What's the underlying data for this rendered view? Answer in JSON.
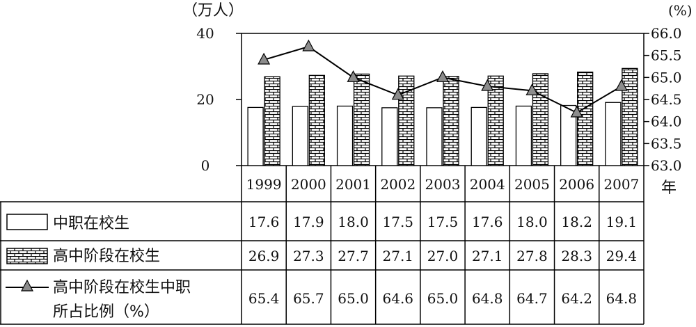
{
  "chart_data": {
    "type": "bar",
    "left_unit": "（万人）",
    "right_unit": "(%)",
    "x_unit": "年",
    "categories": [
      "1999",
      "2000",
      "2001",
      "2002",
      "2003",
      "2004",
      "2005",
      "2006",
      "2007"
    ],
    "y_left_ticks": [
      "40",
      "20",
      "0"
    ],
    "y_left_range": [
      0,
      40
    ],
    "y_right_ticks": [
      "66.0",
      "65.5",
      "65.0",
      "64.5",
      "64.0",
      "63.5",
      "63.0"
    ],
    "y_right_range": [
      63.0,
      66.0
    ],
    "series": [
      {
        "name": "中职在校生",
        "type": "bar",
        "axis": "left",
        "pattern": "plain",
        "values": [
          17.6,
          17.9,
          18.0,
          17.5,
          17.5,
          17.6,
          18.0,
          18.2,
          19.1
        ],
        "labels": [
          "17.6",
          "17.9",
          "18.0",
          "17.5",
          "17.5",
          "17.6",
          "18.0",
          "18.2",
          "19.1"
        ]
      },
      {
        "name": "高中阶段在校生",
        "type": "bar",
        "axis": "left",
        "pattern": "brick",
        "values": [
          26.9,
          27.3,
          27.7,
          27.1,
          27.0,
          27.1,
          27.8,
          28.3,
          29.4
        ],
        "labels": [
          "26.9",
          "27.3",
          "27.7",
          "27.1",
          "27.0",
          "27.1",
          "27.8",
          "28.3",
          "29.4"
        ]
      },
      {
        "name_lines": [
          "高中阶段在校生中职",
          "所占比例（%）"
        ],
        "type": "line",
        "axis": "right",
        "marker": "triangle",
        "values": [
          65.4,
          65.7,
          65.0,
          64.6,
          65.0,
          64.8,
          64.7,
          64.2,
          64.8
        ],
        "labels": [
          "65.4",
          "65.7",
          "65.0",
          "64.6",
          "65.0",
          "64.8",
          "64.7",
          "64.2",
          "64.8"
        ]
      }
    ],
    "colors": {
      "line": "#000000",
      "marker": "#8c8c8c",
      "bar_fill": "#ffffff",
      "brick_fill": "#ffffff"
    }
  }
}
